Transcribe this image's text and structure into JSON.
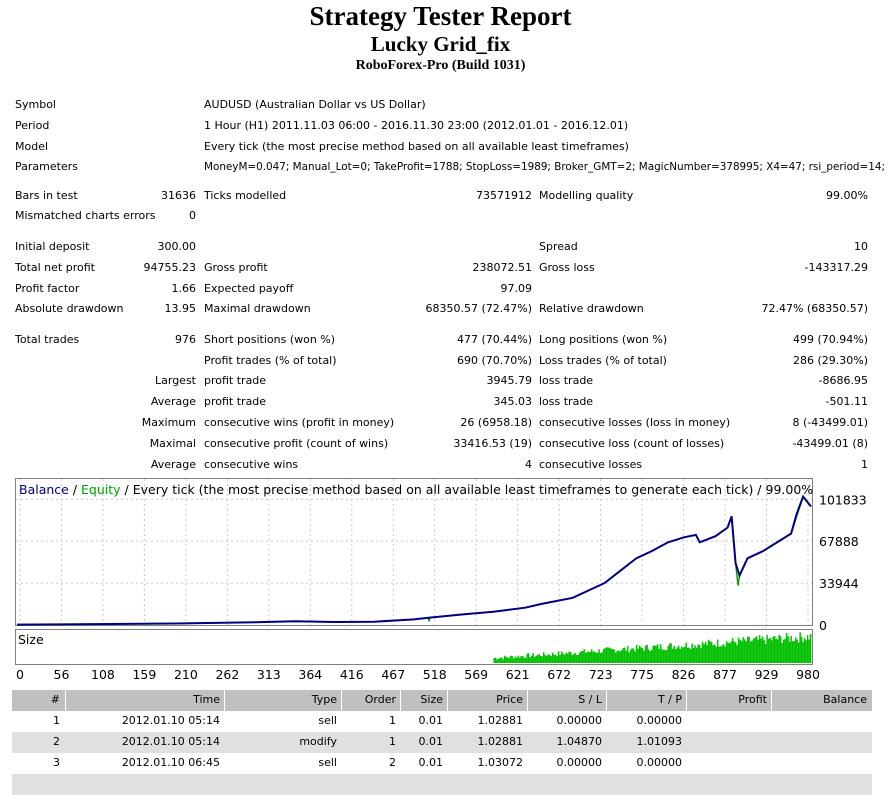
{
  "header": {
    "title": "Strategy Tester Report",
    "subtitle": "Lucky Grid_fix",
    "build": "RoboForex-Pro (Build 1031)"
  },
  "info": {
    "symbol_label": "Symbol",
    "symbol_value": "AUDUSD (Australian Dollar vs US Dollar)",
    "period_label": "Period",
    "period_value": "1 Hour (H1) 2011.11.03 06:00 - 2016.11.30 23:00 (2012.01.01 - 2016.12.01)",
    "model_label": "Model",
    "model_value": "Every tick (the most precise method based on all available least timeframes)",
    "parameters_label": "Parameters",
    "parameters_value": "MoneyM=0.047; Manual_Lot=0; TakeProfit=1788; StopLoss=1989; Broker_GMT=2; MagicNumber=378995; X4=47; rsi_period=14;"
  },
  "stats": {
    "bars_label": "Bars in test",
    "bars_value": "31636",
    "ticks_label": "Ticks modelled",
    "ticks_value": "73571912",
    "quality_label": "Modelling quality",
    "quality_value": "99.00%",
    "mismatch_label": "Mismatched charts errors",
    "mismatch_value": "0",
    "deposit_label": "Initial deposit",
    "deposit_value": "300.00",
    "spread_label": "Spread",
    "spread_value": "10",
    "netprofit_label": "Total net profit",
    "netprofit_value": "94755.23",
    "grossprofit_label": "Gross profit",
    "grossprofit_value": "238072.51",
    "grossloss_label": "Gross loss",
    "grossloss_value": "-143317.29",
    "pf_label": "Profit factor",
    "pf_value": "1.66",
    "payoff_label": "Expected payoff",
    "payoff_value": "97.09",
    "absdd_label": "Absolute drawdown",
    "absdd_value": "13.95",
    "maxdd_label": "Maximal drawdown",
    "maxdd_value": "68350.57 (72.47%)",
    "reldd_label": "Relative drawdown",
    "reldd_value": "72.47% (68350.57)",
    "trades_label": "Total trades",
    "trades_value": "976",
    "short_label": "Short positions (won %)",
    "short_value": "477 (70.44%)",
    "long_label": "Long positions (won %)",
    "long_value": "499 (70.94%)",
    "ptrades_label": "Profit trades (% of total)",
    "ptrades_value": "690 (70.70%)",
    "ltrades_label": "Loss trades (% of total)",
    "ltrades_value": "286 (29.30%)",
    "largest_label": "Largest",
    "largest_profit_label": "profit trade",
    "largest_profit_value": "3945.79",
    "largest_loss_label": "loss trade",
    "largest_loss_value": "-8686.95",
    "average_label": "Average",
    "average_profit_label": "profit trade",
    "average_profit_value": "345.03",
    "average_loss_label": "loss trade",
    "average_loss_value": "-501.11",
    "maximum_label": "Maximum",
    "maxwins_label": "consecutive wins (profit in money)",
    "maxwins_value": "26 (6958.18)",
    "maxlosses_label": "consecutive losses (loss in money)",
    "maxlosses_value": "8 (-43499.01)",
    "maximal_label": "Maximal",
    "maxprofit_label": "consecutive profit (count of wins)",
    "maxprofit_value": "33416.53 (19)",
    "maxloss_label": "consecutive loss (count of losses)",
    "maxloss_value": "-43499.01 (8)",
    "average2_label": "Average",
    "avgwins_label": "consecutive wins",
    "avgwins_value": "4",
    "avglosses_label": "consecutive losses",
    "avglosses_value": "1"
  },
  "chart_data": {
    "type": "line",
    "legend_balance": "Balance",
    "legend_sep1": " / ",
    "legend_equity": "Equity",
    "legend_rest": " / Every tick (the most precise method based on all available least timeframes to generate each tick) / 99.00%",
    "y_ticks": [
      "101833",
      "67888",
      "33944",
      "0"
    ],
    "y_tick_values": [
      101833,
      67888,
      33944,
      0
    ],
    "ylim": [
      0,
      115000
    ],
    "x_ticks": [
      "0",
      "56",
      "108",
      "159",
      "210",
      "262",
      "313",
      "364",
      "416",
      "467",
      "518",
      "569",
      "621",
      "672",
      "723",
      "775",
      "826",
      "877",
      "929",
      "980"
    ],
    "xlim": [
      0,
      1000
    ],
    "size_label": "Size",
    "colors": {
      "balance": "#000080",
      "equity": "#00a000",
      "size": "#00c000",
      "grid": "#c8c8c8"
    },
    "balance": [
      [
        0,
        300
      ],
      [
        100,
        700
      ],
      [
        200,
        1200
      ],
      [
        300,
        2200
      ],
      [
        350,
        3000
      ],
      [
        400,
        2400
      ],
      [
        450,
        2700
      ],
      [
        500,
        4500
      ],
      [
        520,
        6000
      ],
      [
        560,
        8500
      ],
      [
        600,
        10800
      ],
      [
        640,
        14000
      ],
      [
        660,
        17000
      ],
      [
        700,
        22000
      ],
      [
        720,
        28000
      ],
      [
        740,
        34000
      ],
      [
        760,
        44000
      ],
      [
        780,
        54000
      ],
      [
        800,
        60000
      ],
      [
        820,
        67000
      ],
      [
        840,
        71000
      ],
      [
        855,
        73000
      ],
      [
        860,
        67000
      ],
      [
        880,
        72000
      ],
      [
        895,
        79000
      ],
      [
        900,
        88000
      ],
      [
        905,
        50000
      ],
      [
        910,
        40000
      ],
      [
        920,
        54000
      ],
      [
        940,
        60000
      ],
      [
        960,
        68000
      ],
      [
        975,
        74000
      ],
      [
        982,
        90000
      ],
      [
        990,
        104000
      ],
      [
        1000,
        96000
      ]
    ],
    "equity": [
      [
        0,
        300
      ],
      [
        100,
        700
      ],
      [
        200,
        1200
      ],
      [
        300,
        2200
      ],
      [
        350,
        3000
      ],
      [
        400,
        2400
      ],
      [
        450,
        2700
      ],
      [
        500,
        4500
      ],
      [
        518,
        6000
      ],
      [
        519,
        2800
      ],
      [
        520,
        6000
      ],
      [
        560,
        8500
      ],
      [
        600,
        10800
      ],
      [
        640,
        14000
      ],
      [
        660,
        17000
      ],
      [
        700,
        22000
      ],
      [
        720,
        28000
      ],
      [
        740,
        34000
      ],
      [
        760,
        44000
      ],
      [
        780,
        54000
      ],
      [
        800,
        60000
      ],
      [
        820,
        67000
      ],
      [
        840,
        71000
      ],
      [
        855,
        73000
      ],
      [
        860,
        67000
      ],
      [
        880,
        72000
      ],
      [
        895,
        79000
      ],
      [
        900,
        88000
      ],
      [
        905,
        50000
      ],
      [
        908,
        32000
      ],
      [
        910,
        40000
      ],
      [
        920,
        54000
      ],
      [
        940,
        60000
      ],
      [
        960,
        68000
      ],
      [
        975,
        74000
      ],
      [
        982,
        88000
      ],
      [
        990,
        104000
      ],
      [
        1000,
        96000
      ]
    ]
  },
  "trades_table": {
    "headers": [
      "#",
      "Time",
      "Type",
      "Order",
      "Size",
      "Price",
      "S / L",
      "T / P",
      "Profit",
      "Balance"
    ],
    "rows": [
      [
        "1",
        "2012.01.10 05:14",
        "sell",
        "1",
        "0.01",
        "1.02881",
        "0.00000",
        "0.00000",
        "",
        ""
      ],
      [
        "2",
        "2012.01.10 05:14",
        "modify",
        "1",
        "0.01",
        "1.02881",
        "1.04870",
        "1.01093",
        "",
        ""
      ],
      [
        "3",
        "2012.01.10 06:45",
        "sell",
        "2",
        "0.01",
        "1.03072",
        "0.00000",
        "0.00000",
        "",
        ""
      ]
    ]
  }
}
